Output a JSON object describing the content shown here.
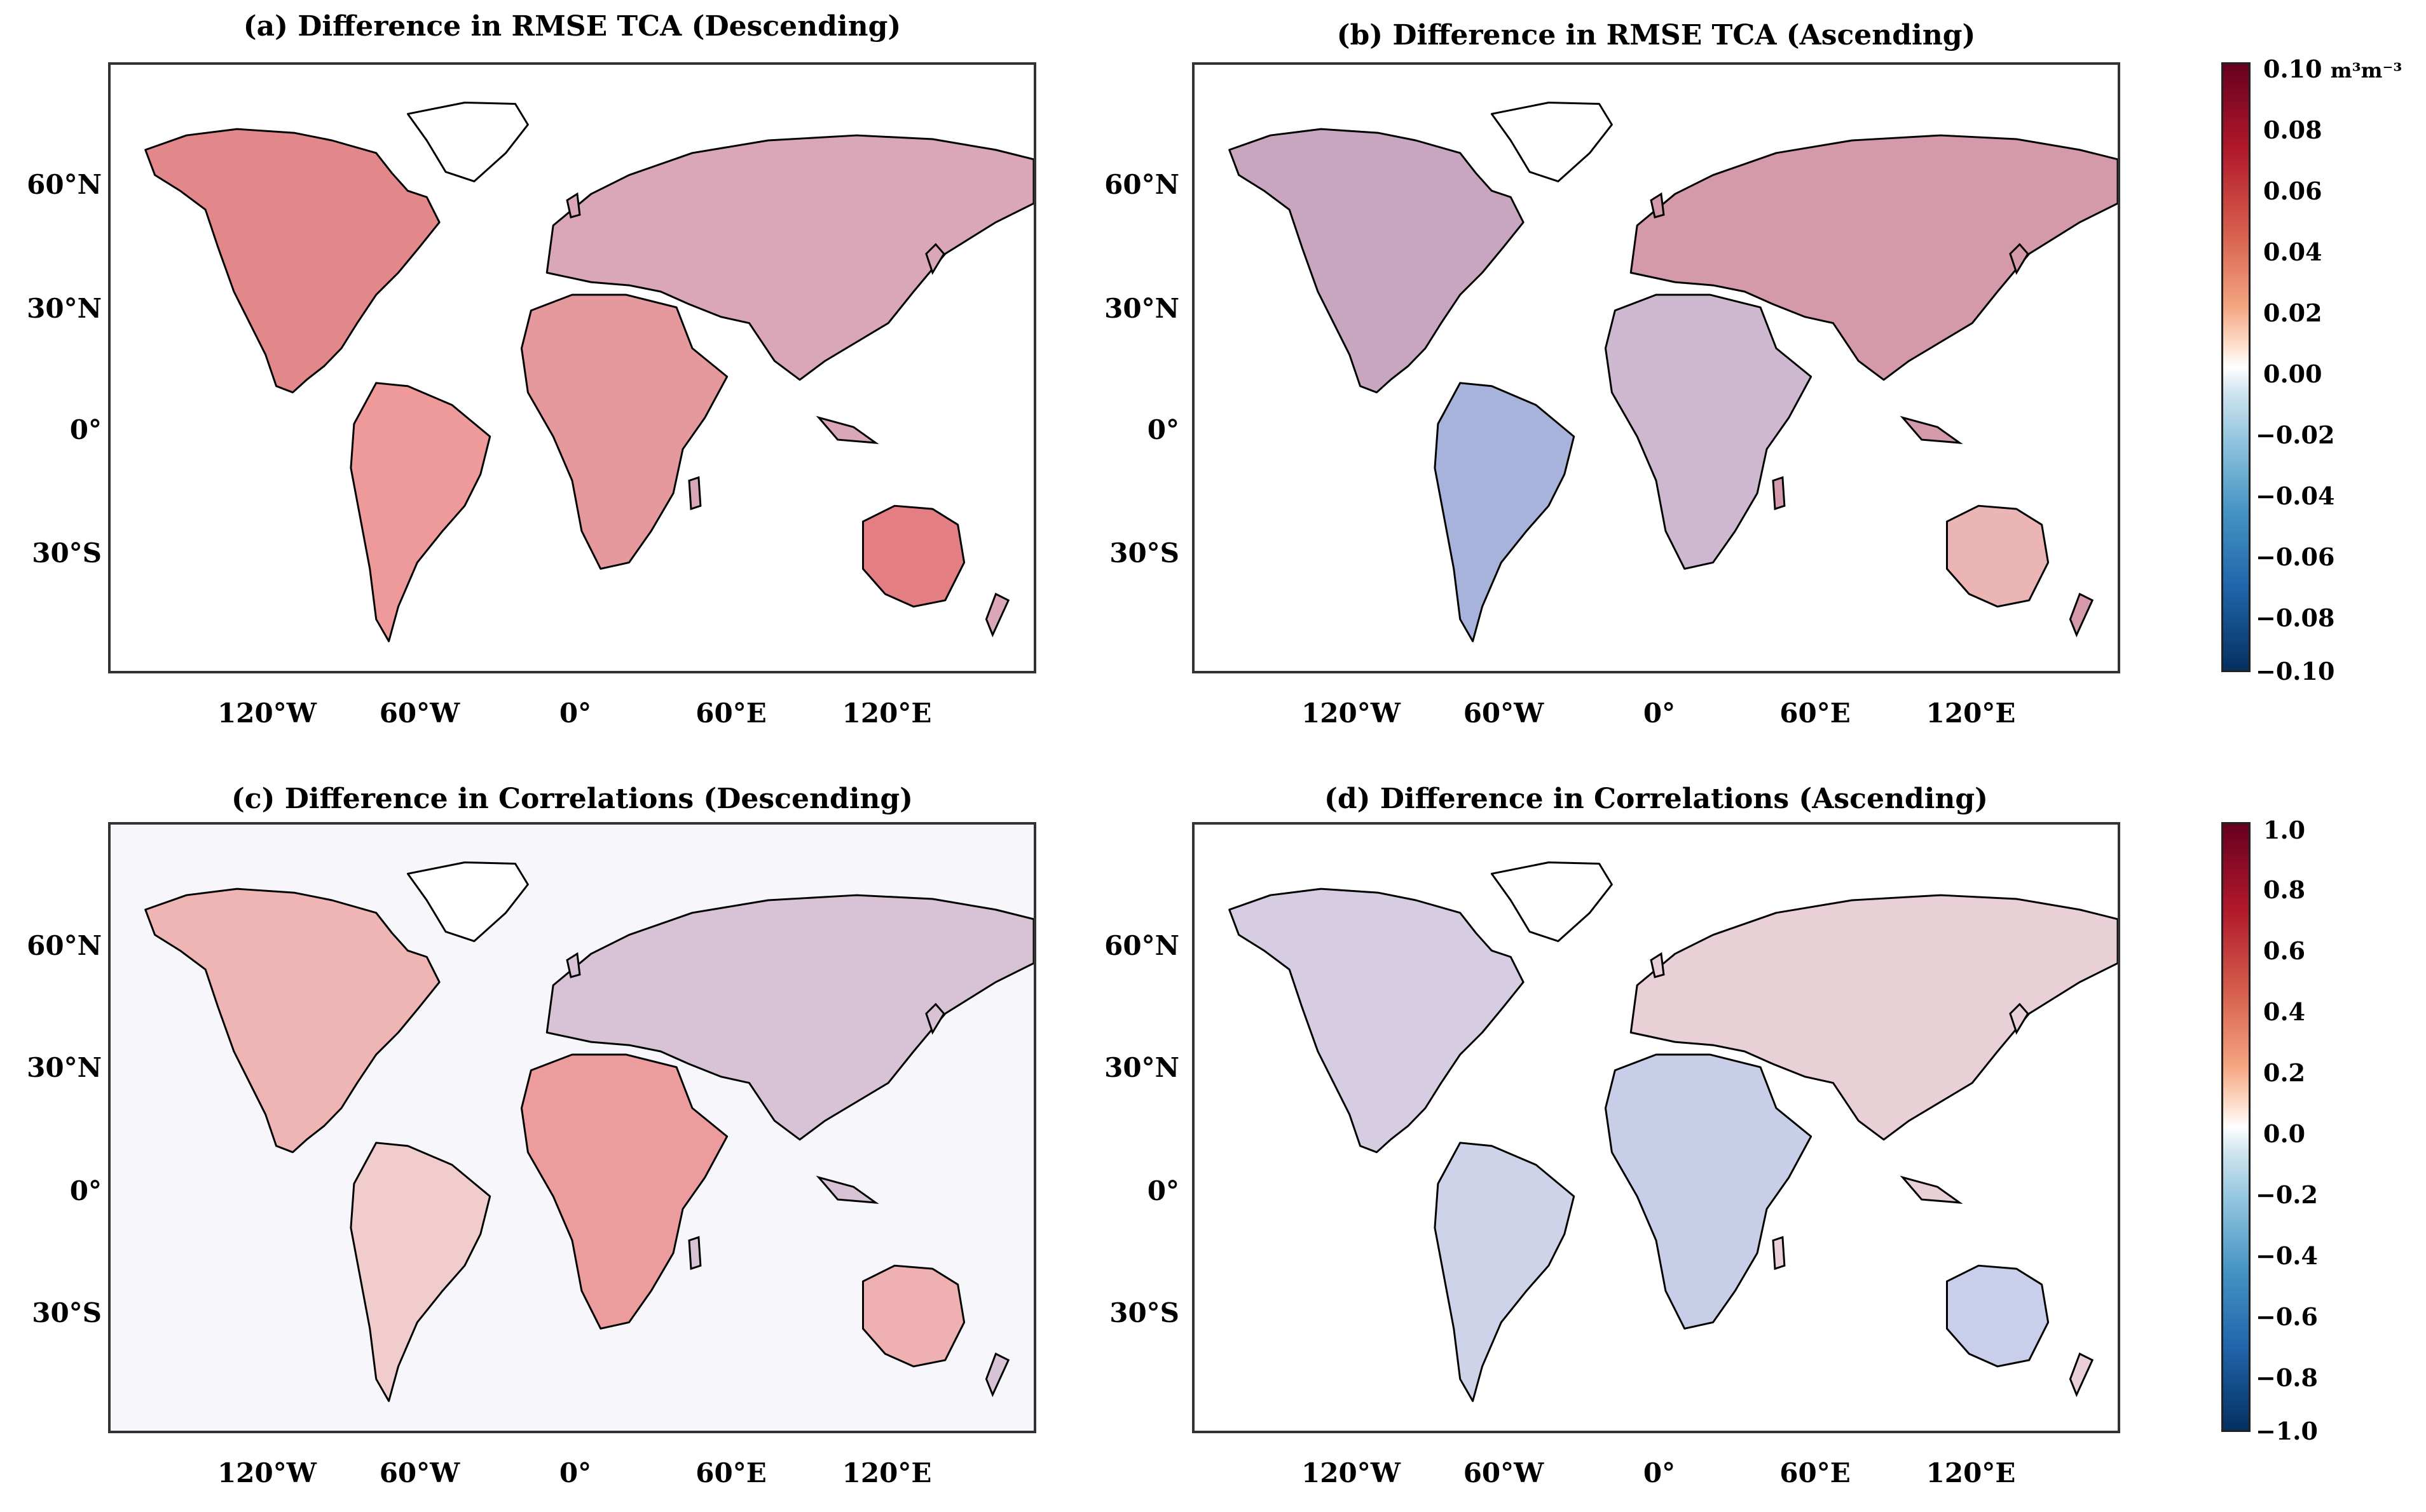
{
  "panels": [
    {
      "title": "(a) Difference in RMSE TCA (Descending)"
    },
    {
      "title": "(b) Difference in RMSE TCA (Ascending)"
    },
    {
      "title": "(c)  Difference in Correlations (Descending)"
    },
    {
      "title": "(d) Difference in Correlations (Ascending)"
    }
  ],
  "lat_labels": [
    "60°N",
    "30°N",
    "0°",
    "30°S"
  ],
  "lon_labels": [
    "120°W",
    "60°W",
    "0°",
    "60°E",
    "120°E"
  ],
  "colorbar_top": {
    "unit": "m³m⁻³",
    "ticks": [
      "0.10",
      "0.08",
      "0.06",
      "0.04",
      "0.02",
      "0.00",
      "−0.02",
      "−0.04",
      "−0.06",
      "−0.08",
      "−0.10"
    ]
  },
  "colorbar_bottom": {
    "ticks": [
      "1.0",
      "0.8",
      "0.6",
      "0.4",
      "0.2",
      "0.0",
      "−0.2",
      "−0.4",
      "−0.6",
      "−0.8",
      "−1.0"
    ]
  },
  "colors": {
    "land_red": "#e8a3a3",
    "land_blue": "#a9b8dd",
    "coast": "#000000",
    "cmap": [
      "#67001f",
      "#b2182b",
      "#d6604d",
      "#f4a582",
      "#fddbc7",
      "#ffffff",
      "#d1e5f0",
      "#92c5de",
      "#4393c3",
      "#2166ac",
      "#053061"
    ]
  }
}
